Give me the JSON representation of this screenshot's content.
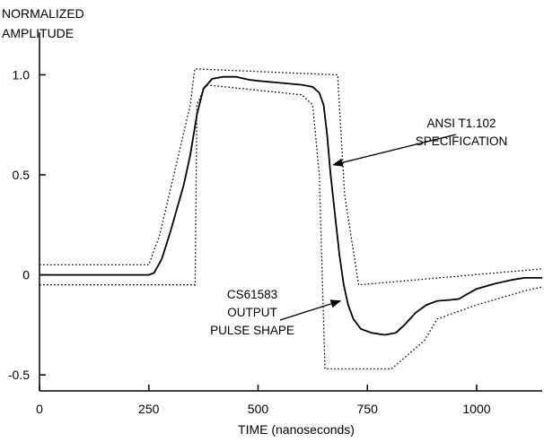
{
  "chart_data": {
    "type": "line",
    "ylabel_lines": [
      "NORMALIZED",
      "AMPLITUDE"
    ],
    "xlabel": "TIME  (nanoseconds)",
    "xlim": [
      0,
      1150
    ],
    "ylim": [
      -0.58,
      1.15
    ],
    "x_ticks": [
      0,
      250,
      500,
      750,
      1000
    ],
    "y_ticks": [
      {
        "value": -0.5,
        "label": "-0.5"
      },
      {
        "value": 0,
        "label": "0"
      },
      {
        "value": 0.5,
        "label": "0.5"
      },
      {
        "value": 1.0,
        "label": "1.0"
      }
    ],
    "grid": false,
    "series": [
      {
        "role": "output-pulse",
        "style": "solid",
        "points": [
          [
            0,
            0
          ],
          [
            250,
            0
          ],
          [
            262,
            0.01
          ],
          [
            280,
            0.08
          ],
          [
            300,
            0.22
          ],
          [
            330,
            0.45
          ],
          [
            345,
            0.6
          ],
          [
            360,
            0.8
          ],
          [
            375,
            0.93
          ],
          [
            395,
            0.98
          ],
          [
            420,
            0.99
          ],
          [
            450,
            0.99
          ],
          [
            480,
            0.975
          ],
          [
            500,
            0.97
          ],
          [
            550,
            0.96
          ],
          [
            600,
            0.95
          ],
          [
            625,
            0.94
          ],
          [
            640,
            0.91
          ],
          [
            650,
            0.85
          ],
          [
            658,
            0.7
          ],
          [
            666,
            0.5
          ],
          [
            676,
            0.3
          ],
          [
            686,
            0.1
          ],
          [
            696,
            -0.05
          ],
          [
            706,
            -0.15
          ],
          [
            718,
            -0.22
          ],
          [
            735,
            -0.27
          ],
          [
            760,
            -0.29
          ],
          [
            790,
            -0.3
          ],
          [
            815,
            -0.29
          ],
          [
            835,
            -0.25
          ],
          [
            860,
            -0.19
          ],
          [
            885,
            -0.15
          ],
          [
            910,
            -0.13
          ],
          [
            940,
            -0.125
          ],
          [
            960,
            -0.12
          ],
          [
            975,
            -0.1
          ],
          [
            1000,
            -0.07
          ],
          [
            1040,
            -0.045
          ],
          [
            1080,
            -0.025
          ],
          [
            1110,
            -0.015
          ],
          [
            1150,
            -0.015
          ]
        ]
      },
      {
        "role": "spec-upper",
        "style": "dotted",
        "points": [
          [
            0,
            0.05
          ],
          [
            250,
            0.05
          ],
          [
            275,
            0.2
          ],
          [
            345,
            0.85
          ],
          [
            355,
            1.03
          ],
          [
            682,
            1.0
          ],
          [
            698,
            0.4
          ],
          [
            730,
            -0.05
          ],
          [
            1150,
            0.03
          ]
        ]
      },
      {
        "role": "spec-lower",
        "style": "dotted",
        "points": [
          [
            0,
            -0.05
          ],
          [
            356,
            -0.05
          ],
          [
            360,
            0.85
          ],
          [
            380,
            0.95
          ],
          [
            600,
            0.9
          ],
          [
            625,
            0.85
          ],
          [
            640,
            0.5
          ],
          [
            653,
            -0.47
          ],
          [
            805,
            -0.47
          ],
          [
            880,
            -0.33
          ],
          [
            910,
            -0.22
          ],
          [
            1000,
            -0.15
          ],
          [
            1110,
            -0.08
          ],
          [
            1150,
            -0.06
          ]
        ]
      }
    ],
    "annotations": [
      {
        "lines": [
          "ANSI T1.102",
          "SPECIFICATION"
        ],
        "target": [
          672,
          0.55
        ]
      },
      {
        "lines": [
          "CS61583",
          "OUTPUT",
          "PULSE SHAPE"
        ],
        "target": [
          688,
          -0.13
        ]
      }
    ]
  }
}
